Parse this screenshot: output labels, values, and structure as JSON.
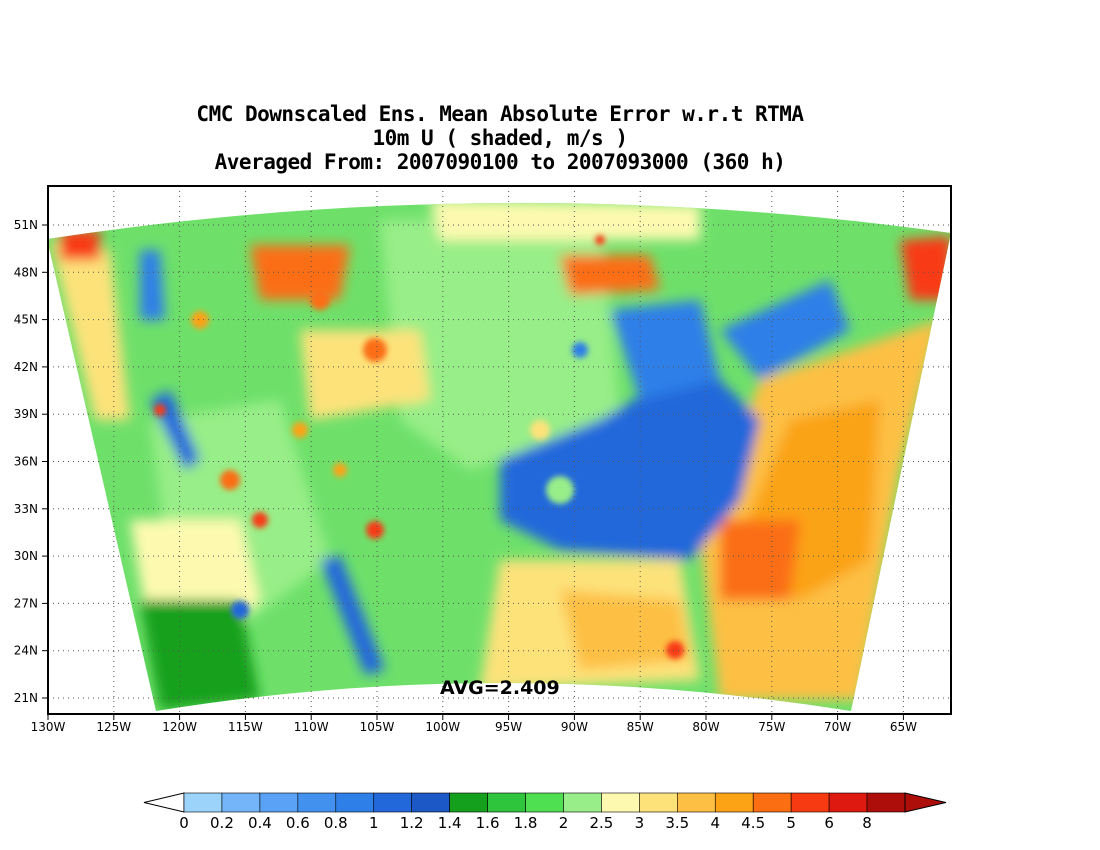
{
  "title": {
    "line1": "CMC Downscaled Ens. Mean Absolute Error w.r.t RTMA",
    "line2": "10m U ( shaded, m/s )",
    "line3": "Averaged From: 2007090100 to 2007093000 (360 h)"
  },
  "map": {
    "lat_labels": [
      "51N",
      "48N",
      "45N",
      "42N",
      "39N",
      "36N",
      "33N",
      "30N",
      "27N",
      "24N",
      "21N"
    ],
    "lon_labels": [
      "130W",
      "125W",
      "120W",
      "115W",
      "110W",
      "105W",
      "100W",
      "95W",
      "90W",
      "85W",
      "80W",
      "75W",
      "70W",
      "65W"
    ],
    "avg_label": "AVG=2.409"
  },
  "colorbar": {
    "labels": [
      "0",
      "0.2",
      "0.4",
      "0.6",
      "0.8",
      "1",
      "1.2",
      "1.4",
      "1.6",
      "1.8",
      "2",
      "2.5",
      "3",
      "3.5",
      "4",
      "4.5",
      "5",
      "6",
      "8"
    ],
    "colors": [
      "#9bd3fb",
      "#74b4f8",
      "#5aa2f5",
      "#4291ef",
      "#2e7fe8",
      "#2268db",
      "#1c58c6",
      "#14a01c",
      "#2ec43c",
      "#4fe052",
      "#98ee88",
      "#fdfab0",
      "#fde27a",
      "#fdc044",
      "#fba314",
      "#fb6e12",
      "#f83a12",
      "#de1a10",
      "#ae0e0a"
    ],
    "under_color": "#ffffff",
    "over_color": "#ae0e0a"
  }
}
